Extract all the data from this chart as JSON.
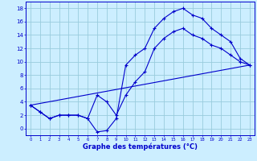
{
  "xlabel": "Graphe des températures (°C)",
  "bg_color": "#cceeff",
  "line_color": "#0000cc",
  "grid_color": "#99ccdd",
  "ylim": [
    -1,
    19
  ],
  "xlim": [
    -0.5,
    23.5
  ],
  "yticks": [
    0,
    2,
    4,
    6,
    8,
    10,
    12,
    14,
    16,
    18
  ],
  "xticks": [
    0,
    1,
    2,
    3,
    4,
    5,
    6,
    7,
    8,
    9,
    10,
    11,
    12,
    13,
    14,
    15,
    16,
    17,
    18,
    19,
    20,
    21,
    22,
    23
  ],
  "line1_x": [
    0,
    1,
    2,
    3,
    4,
    5,
    6,
    7,
    8,
    9,
    10,
    11,
    12,
    13,
    14,
    15,
    16,
    17,
    18,
    19,
    20,
    21,
    22,
    23
  ],
  "line1_y": [
    3.5,
    2.5,
    1.5,
    2.0,
    2.0,
    2.0,
    1.5,
    -0.5,
    -0.3,
    1.5,
    9.5,
    11.0,
    12.0,
    15.0,
    16.5,
    17.5,
    18.0,
    17.0,
    16.5,
    15.0,
    14.0,
    13.0,
    10.5,
    9.5
  ],
  "line2_x": [
    0,
    1,
    2,
    3,
    4,
    5,
    6,
    7,
    8,
    9,
    10,
    11,
    12,
    13,
    14,
    15,
    16,
    17,
    18,
    19,
    20,
    21,
    22,
    23
  ],
  "line2_y": [
    3.5,
    2.5,
    1.5,
    2.0,
    2.0,
    2.0,
    1.5,
    5.0,
    4.0,
    2.0,
    5.0,
    7.0,
    8.5,
    12.0,
    13.5,
    14.5,
    15.0,
    14.0,
    13.5,
    12.5,
    12.0,
    11.0,
    10.0,
    9.5
  ],
  "line3_x": [
    0,
    23
  ],
  "line3_y": [
    3.5,
    9.5
  ]
}
